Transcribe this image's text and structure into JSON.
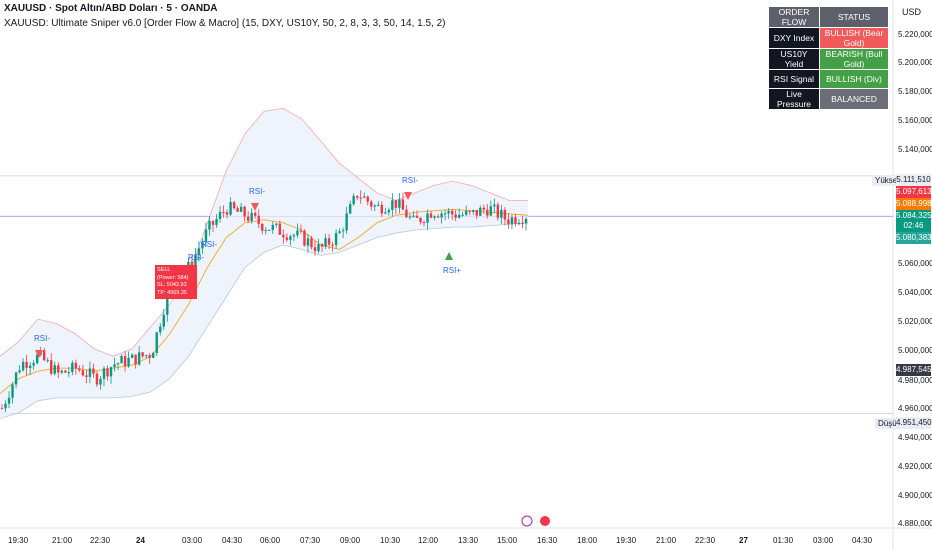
{
  "header": {
    "symbol_line": "XAUUSD · Spot Altın/ABD Doları · 5 · OANDA",
    "indicator_line": "XAUUSD: Ultimate Sniper v6.0 [Order Flow & Macro] (15, DXY, US10Y, 50, 2, 8, 3, 3, 50, 14, 1.5, 2)"
  },
  "currency": "USD",
  "order_flow_table": {
    "header_left": "ORDER FLOW",
    "header_right": "STATUS",
    "rows": [
      {
        "label": "DXY Index",
        "status": "BULLISH (Bear Gold)",
        "color": "#f05a5a"
      },
      {
        "label": "US10Y Yield",
        "status": "BEARISH (Bull Gold)",
        "color": "#43a047"
      },
      {
        "label": "RSI Signal",
        "status": "BULLISH (Div)",
        "color": "#43a047"
      },
      {
        "label": "Live Pressure",
        "status": "BALANCED",
        "color": "#6b6e78"
      }
    ]
  },
  "price_axis": {
    "ticks": [
      "5.220,000",
      "5.200,000",
      "5.180,000",
      "5.160,000",
      "5.140,000",
      "5.060,000",
      "5.040,000",
      "5.020,000",
      "5.000,000",
      "4.980,000",
      "4.960,000",
      "4.940,000",
      "4.920,000",
      "4.900,000",
      "4.880,000"
    ],
    "tags": {
      "high": "5.111,510",
      "high_label": "Yüksek",
      "red": "5.097,613",
      "orange": "5.088,998",
      "green_price": "5.084,325",
      "countdown": "02:46",
      "blue_green": "5.080,383",
      "dark": "4.987,545",
      "low": "4.951,450",
      "low_label": "Düşük"
    }
  },
  "time_axis": [
    "19:30",
    "21:00",
    "22:30",
    "24",
    "03:00",
    "04:30",
    "06:00",
    "07:30",
    "09:00",
    "10:30",
    "12:00",
    "13:30",
    "15:00",
    "16:30",
    "18:00",
    "19:30",
    "21:00",
    "22:30",
    "27",
    "01:30",
    "03:00",
    "04:30"
  ],
  "sell_signal": {
    "lines": [
      "SELL",
      "(Power: 584)",
      "SL: 5042.93",
      "TP: 4969.35"
    ]
  },
  "rsi_labels": [
    "RSI-",
    "RSI-",
    "RSI-",
    "RSI-",
    "RSI-",
    "RSI+"
  ],
  "colors": {
    "up": "#089981",
    "down": "#f23645",
    "ma": "#f5a623",
    "band": "#f7a8b0",
    "band_fill": "#e8f0fb"
  },
  "chart_data": {
    "type": "candlestick",
    "ylim": [
      4875,
      5230
    ],
    "band_upper": [
      4990,
      5000,
      5015,
      5012,
      5005,
      4995,
      4990,
      4995,
      5010,
      5025,
      5045,
      5080,
      5115,
      5140,
      5155,
      5157,
      5150,
      5135,
      5120,
      5110,
      5100,
      5095,
      5100,
      5105,
      5108,
      5105,
      5100,
      5095,
      5095
    ],
    "band_lower": [
      4948,
      4952,
      4960,
      4962,
      4962,
      4962,
      4962,
      4963,
      4966,
      4975,
      4990,
      5010,
      5030,
      5050,
      5060,
      5065,
      5062,
      5058,
      5060,
      5065,
      5070,
      5073,
      5075,
      5076,
      5077,
      5077,
      5078,
      5079,
      5080
    ],
    "ma": [
      4965,
      4975,
      4980,
      4982,
      4982,
      4980,
      4982,
      4984,
      4990,
      5005,
      5025,
      5050,
      5070,
      5080,
      5082,
      5080,
      5075,
      5065,
      5062,
      5070,
      5080,
      5085,
      5087,
      5088,
      5089,
      5088,
      5087,
      5086,
      5085
    ],
    "close": [
      4955,
      4985,
      4990,
      4978,
      4982,
      4975,
      4985,
      4988,
      4992,
      5040,
      5050,
      5075,
      5090,
      5085,
      5078,
      5074,
      5070,
      5062,
      5072,
      5100,
      5090,
      5094,
      5080,
      5088,
      5086,
      5085,
      5090,
      5082,
      5085
    ]
  }
}
